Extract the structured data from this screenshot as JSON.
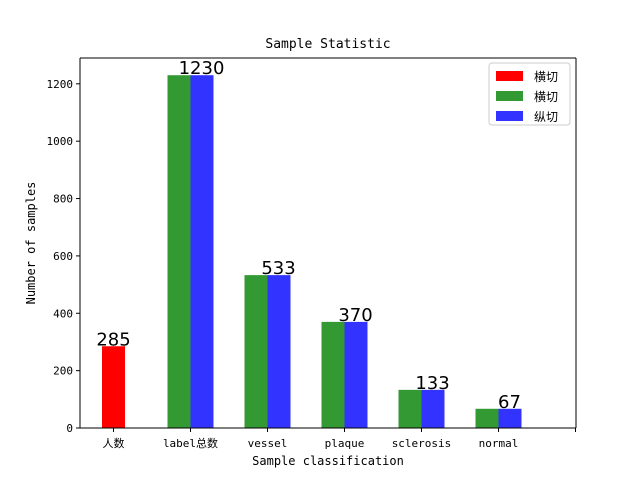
{
  "chart_data": {
    "type": "bar",
    "title": "Sample Statistic",
    "xlabel": "Sample classification",
    "ylabel": "Number of samples",
    "categories": [
      "人数",
      "label总数",
      "vessel",
      "plaque",
      "sclerosis",
      "normal"
    ],
    "ylim": [
      0,
      1290
    ],
    "yticks": [
      0,
      200,
      400,
      600,
      800,
      1000,
      1200
    ],
    "grid": false,
    "legend_position": "top-right",
    "series": [
      {
        "name": "横切",
        "color": "#ff0000",
        "values": [
          285,
          null,
          null,
          null,
          null,
          null
        ]
      },
      {
        "name": "横切",
        "color": "#339933",
        "values": [
          null,
          1230,
          533,
          370,
          133,
          67
        ]
      },
      {
        "name": "纵切",
        "color": "#3333ff",
        "values": [
          null,
          1230,
          533,
          370,
          133,
          67
        ]
      }
    ],
    "data_labels": [
      "285",
      "1230",
      "533",
      "370",
      "133",
      "67"
    ]
  }
}
